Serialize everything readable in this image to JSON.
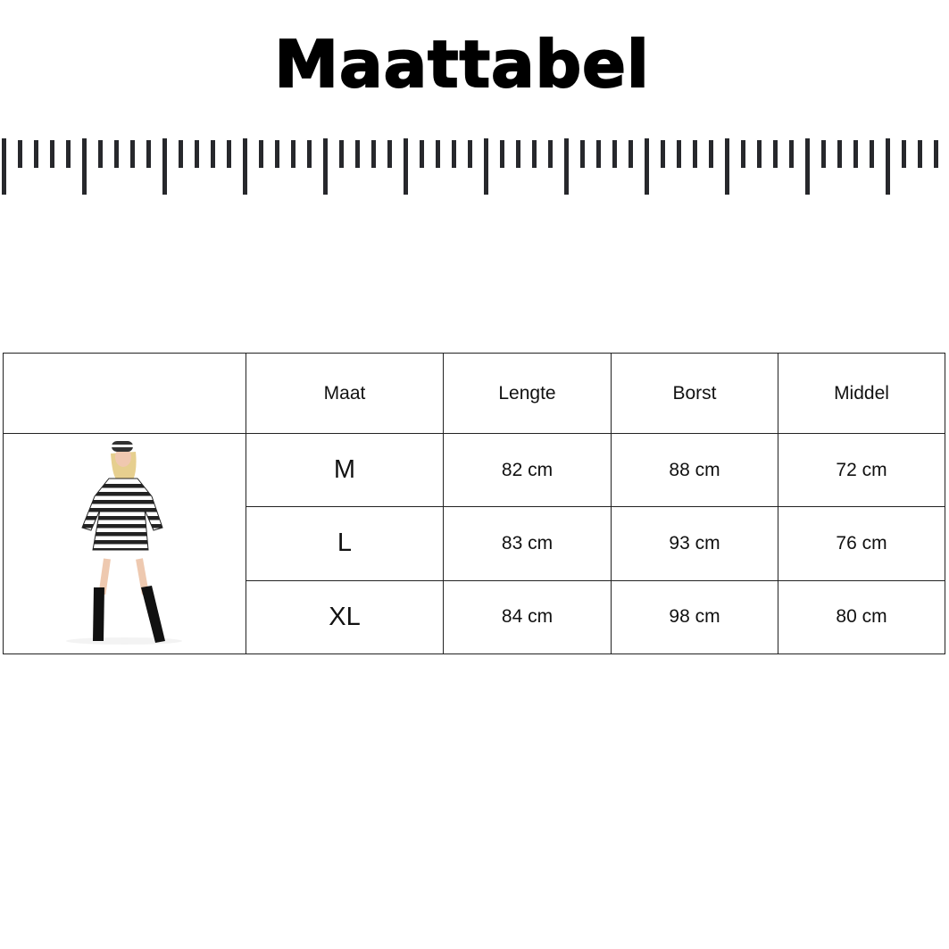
{
  "title": "Maattabel",
  "table": {
    "headers": [
      "",
      "Maat",
      "Lengte",
      "Borst",
      "Middel"
    ],
    "rows": [
      {
        "maat": "M",
        "lengte": "82 cm",
        "borst": "88 cm",
        "middel": "72 cm"
      },
      {
        "maat": "L",
        "lengte": "83 cm",
        "borst": "93 cm",
        "middel": "76 cm"
      },
      {
        "maat": "XL",
        "lengte": "84 cm",
        "borst": "98 cm",
        "middel": "80 cm"
      }
    ]
  },
  "colors": {
    "ink": "#27282c"
  }
}
